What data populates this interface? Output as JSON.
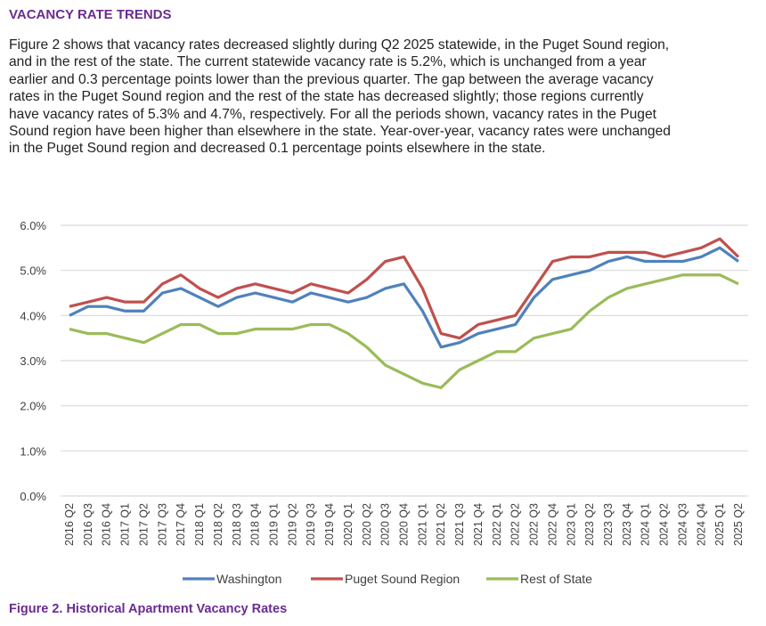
{
  "section_title": "VACANCY RATE TRENDS",
  "paragraph_lines": [
    "Figure 2 shows that vacancy rates decreased slightly during Q2 2025 statewide, in the Puget Sound region,",
    "and in the rest of the state. The current statewide vacancy rate is 5.2%, which is unchanged from a year",
    "earlier and 0.3 percentage points lower than the previous quarter. The gap between the average vacancy",
    "rates in the Puget Sound region and the rest of the state has decreased slightly; those regions currently",
    "have vacancy rates of 5.3% and 4.7%, respectively. For all the periods shown, vacancy rates in the Puget",
    "Sound region have been higher than elsewhere in the state. Year-over-year, vacancy rates were unchanged",
    "in the Puget Sound region and decreased 0.1 percentage points elsewhere in the state."
  ],
  "caption": "Figure 2. Historical Apartment Vacancy Rates",
  "chart_data": {
    "type": "line",
    "title": "",
    "xlabel": "",
    "ylabel": "",
    "ylim": [
      0,
      6
    ],
    "yticks": [
      "0.0%",
      "1.0%",
      "2.0%",
      "3.0%",
      "4.0%",
      "5.0%",
      "6.0%"
    ],
    "grid": true,
    "legend": "bottom",
    "categories": [
      "2016 Q2",
      "2016 Q3",
      "2016 Q4",
      "2017 Q1",
      "2017 Q2",
      "2017 Q3",
      "2017 Q4",
      "2018 Q1",
      "2018 Q2",
      "2018 Q3",
      "2018 Q4",
      "2019 Q1",
      "2019 Q2",
      "2019 Q3",
      "2019 Q4",
      "2020 Q1",
      "2020 Q2",
      "2020 Q3",
      "2020 Q4",
      "2021 Q1",
      "2021 Q2",
      "2021 Q3",
      "2021 Q4",
      "2022 Q1",
      "2022 Q2",
      "2022 Q3",
      "2022 Q4",
      "2023 Q1",
      "2023 Q2",
      "2023 Q3",
      "2023 Q4",
      "2024 Q1",
      "2024 Q2",
      "2024 Q3",
      "2024 Q4",
      "2025 Q1",
      "2025 Q2"
    ],
    "series": [
      {
        "name": "Washington",
        "color": "#4f81bd",
        "values": [
          4.0,
          4.2,
          4.2,
          4.1,
          4.1,
          4.5,
          4.6,
          4.4,
          4.2,
          4.4,
          4.5,
          4.4,
          4.3,
          4.5,
          4.4,
          4.3,
          4.4,
          4.6,
          4.7,
          4.1,
          3.3,
          3.4,
          3.6,
          3.7,
          3.8,
          4.4,
          4.8,
          4.9,
          5.0,
          5.2,
          5.3,
          5.2,
          5.2,
          5.2,
          5.3,
          5.5,
          5.2
        ]
      },
      {
        "name": "Puget Sound Region",
        "color": "#c0504d",
        "values": [
          4.2,
          4.3,
          4.4,
          4.3,
          4.3,
          4.7,
          4.9,
          4.6,
          4.4,
          4.6,
          4.7,
          4.6,
          4.5,
          4.7,
          4.6,
          4.5,
          4.8,
          5.2,
          5.3,
          4.6,
          3.6,
          3.5,
          3.8,
          3.9,
          4.0,
          4.6,
          5.2,
          5.3,
          5.3,
          5.4,
          5.4,
          5.4,
          5.3,
          5.4,
          5.5,
          5.7,
          5.3
        ]
      },
      {
        "name": "Rest of State",
        "color": "#9bbb59",
        "values": [
          3.7,
          3.6,
          3.6,
          3.5,
          3.4,
          3.6,
          3.8,
          3.8,
          3.6,
          3.6,
          3.7,
          3.7,
          3.7,
          3.8,
          3.8,
          3.6,
          3.3,
          2.9,
          2.7,
          2.5,
          2.4,
          2.8,
          3.0,
          3.2,
          3.2,
          3.5,
          3.6,
          3.7,
          4.1,
          4.4,
          4.6,
          4.7,
          4.8,
          4.9,
          4.9,
          4.9,
          4.7
        ]
      }
    ]
  }
}
